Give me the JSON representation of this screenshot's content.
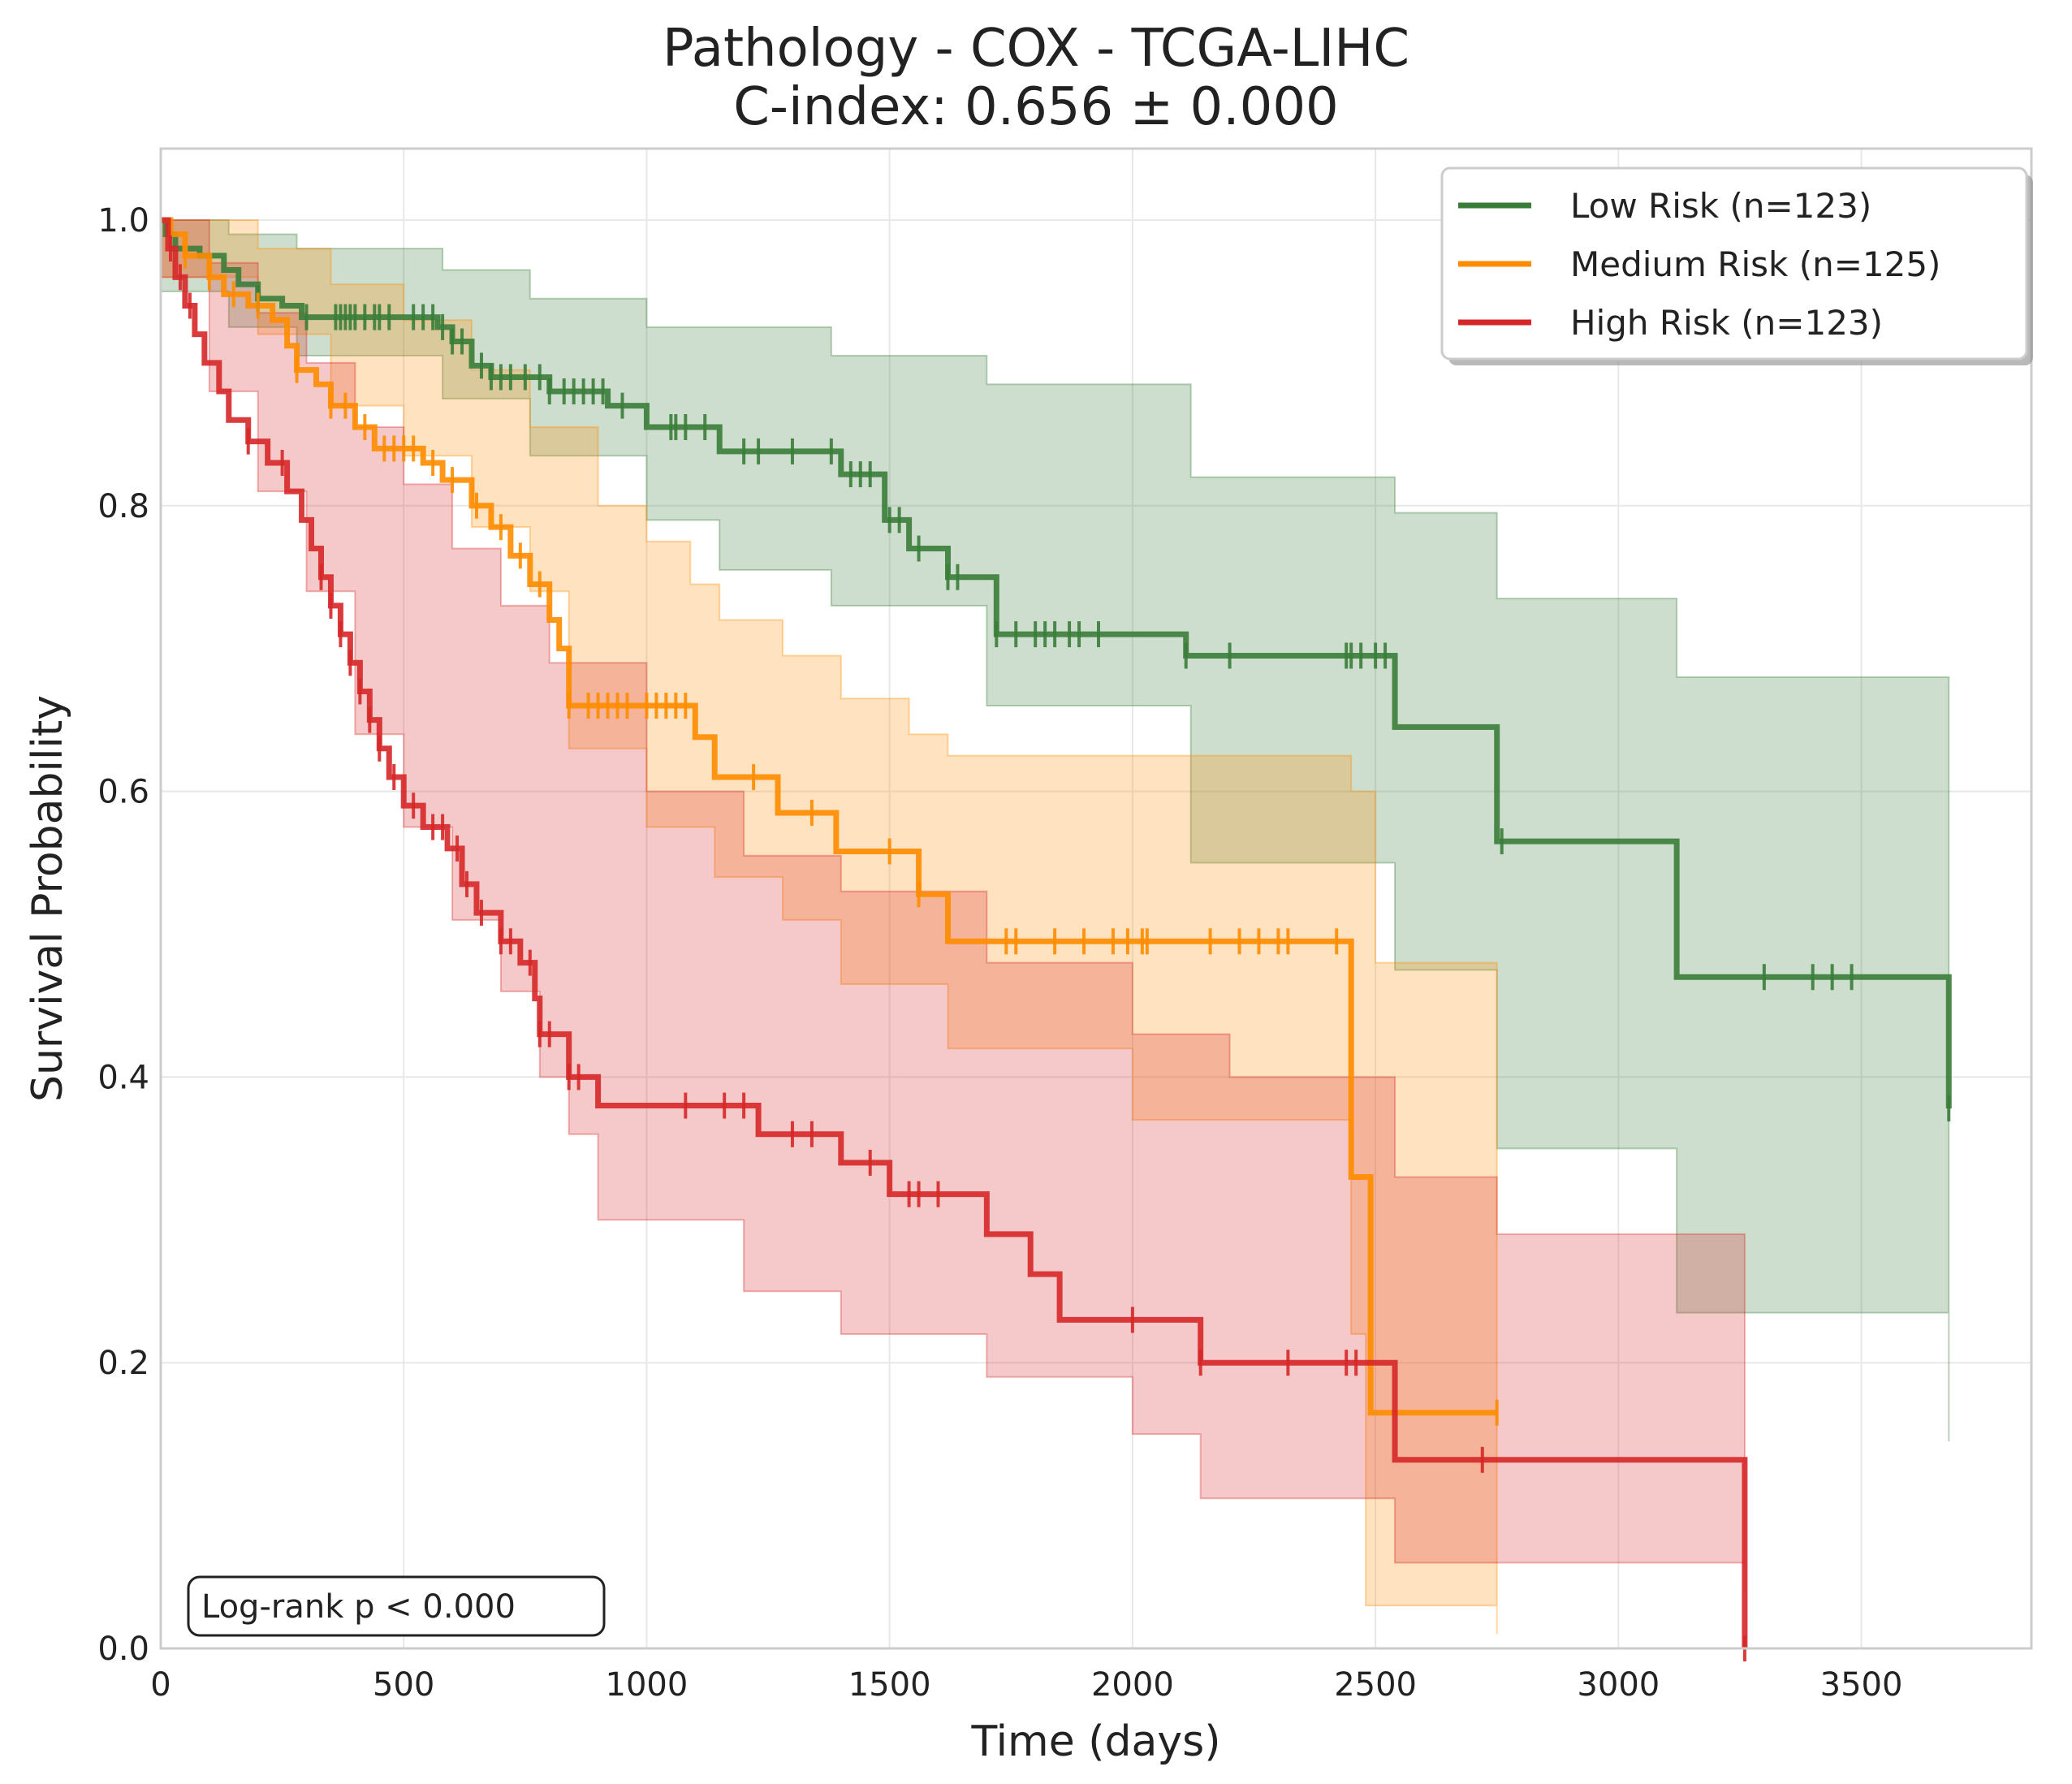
{
  "title": "Pathology - COX - TCGA-LIHC",
  "subtitle": "C-index: 0.656 ± 0.000",
  "annotation": "Log-rank p < 0.000",
  "chart_data": {
    "type": "line",
    "subtype": "kaplan-meier",
    "xlabel": "Time (days)",
    "ylabel": "Survival Probability",
    "xlim": [
      0,
      3850
    ],
    "ylim": [
      0,
      1.05
    ],
    "xticks": [
      "0",
      "500",
      "1000",
      "1500",
      "2000",
      "2500",
      "3000",
      "3500"
    ],
    "yticks": [
      "0.0",
      "0.2",
      "0.4",
      "0.6",
      "0.8",
      "1.0"
    ],
    "grid": true,
    "legend_position": "top-right",
    "series": [
      {
        "name": "Low Risk (n=123)",
        "color": "#3a7d3a",
        "steps": [
          [
            0,
            1.0
          ],
          [
            10,
            0.99
          ],
          [
            30,
            0.98
          ],
          [
            80,
            0.975
          ],
          [
            130,
            0.965
          ],
          [
            160,
            0.955
          ],
          [
            200,
            0.945
          ],
          [
            250,
            0.94
          ],
          [
            290,
            0.932
          ],
          [
            570,
            0.925
          ],
          [
            600,
            0.915
          ],
          [
            640,
            0.898
          ],
          [
            680,
            0.89
          ],
          [
            800,
            0.88
          ],
          [
            920,
            0.87
          ],
          [
            1000,
            0.855
          ],
          [
            1150,
            0.838
          ],
          [
            1400,
            0.822
          ],
          [
            1490,
            0.79
          ],
          [
            1540,
            0.77
          ],
          [
            1620,
            0.75
          ],
          [
            1720,
            0.71
          ],
          [
            2110,
            0.695
          ],
          [
            2540,
            0.645
          ],
          [
            2750,
            0.565
          ],
          [
            3120,
            0.47
          ],
          [
            3680,
            0.378
          ]
        ],
        "censors": [
          200,
          300,
          360,
          370,
          380,
          390,
          400,
          420,
          440,
          450,
          470,
          520,
          540,
          560,
          580,
          600,
          620,
          660,
          680,
          700,
          720,
          750,
          780,
          800,
          830,
          850,
          870,
          890,
          910,
          950,
          1050,
          1060,
          1080,
          1120,
          1200,
          1230,
          1300,
          1380,
          1420,
          1440,
          1460,
          1500,
          1520,
          1560,
          1620,
          1640,
          1720,
          1760,
          1800,
          1820,
          1840,
          1870,
          1890,
          1930,
          2110,
          2200,
          2440,
          2450,
          2470,
          2500,
          2520,
          2760,
          3300,
          3400,
          3440,
          3480,
          3680
        ],
        "ci_upper": [
          [
            0,
            1.0
          ],
          [
            140,
            0.99
          ],
          [
            280,
            0.98
          ],
          [
            580,
            0.965
          ],
          [
            760,
            0.945
          ],
          [
            1000,
            0.925
          ],
          [
            1380,
            0.905
          ],
          [
            1700,
            0.885
          ],
          [
            2120,
            0.82
          ],
          [
            2540,
            0.795
          ],
          [
            2750,
            0.735
          ],
          [
            3120,
            0.68
          ],
          [
            3680,
            0.61
          ]
        ],
        "ci_lower": [
          [
            0,
            0.95
          ],
          [
            140,
            0.925
          ],
          [
            280,
            0.905
          ],
          [
            580,
            0.875
          ],
          [
            760,
            0.835
          ],
          [
            1000,
            0.79
          ],
          [
            1150,
            0.755
          ],
          [
            1380,
            0.73
          ],
          [
            1700,
            0.66
          ],
          [
            2120,
            0.55
          ],
          [
            2540,
            0.475
          ],
          [
            2750,
            0.35
          ],
          [
            3120,
            0.235
          ],
          [
            3680,
            0.145
          ]
        ]
      },
      {
        "name": "Medium Risk (n=125)",
        "color": "#ff8c00",
        "steps": [
          [
            0,
            1.0
          ],
          [
            20,
            0.99
          ],
          [
            50,
            0.975
          ],
          [
            100,
            0.96
          ],
          [
            130,
            0.948
          ],
          [
            180,
            0.94
          ],
          [
            230,
            0.93
          ],
          [
            260,
            0.912
          ],
          [
            280,
            0.895
          ],
          [
            320,
            0.885
          ],
          [
            350,
            0.87
          ],
          [
            400,
            0.855
          ],
          [
            440,
            0.84
          ],
          [
            540,
            0.83
          ],
          [
            580,
            0.818
          ],
          [
            640,
            0.8
          ],
          [
            680,
            0.785
          ],
          [
            720,
            0.765
          ],
          [
            760,
            0.745
          ],
          [
            800,
            0.72
          ],
          [
            820,
            0.7
          ],
          [
            840,
            0.66
          ],
          [
            1100,
            0.638
          ],
          [
            1140,
            0.61
          ],
          [
            1270,
            0.585
          ],
          [
            1390,
            0.558
          ],
          [
            1560,
            0.528
          ],
          [
            1620,
            0.495
          ],
          [
            2450,
            0.33
          ],
          [
            2490,
            0.165
          ],
          [
            2750,
            0.165
          ]
        ],
        "censors": [
          50,
          100,
          150,
          200,
          280,
          350,
          380,
          420,
          460,
          480,
          500,
          520,
          560,
          600,
          650,
          700,
          740,
          780,
          840,
          880,
          900,
          920,
          940,
          960,
          1000,
          1020,
          1040,
          1060,
          1080,
          1220,
          1340,
          1500,
          1560,
          1740,
          1760,
          1840,
          1900,
          1960,
          1990,
          2020,
          2030,
          2160,
          2220,
          2260,
          2300,
          2320,
          2420,
          2750
        ],
        "ci_upper": [
          [
            0,
            1.0
          ],
          [
            200,
            0.98
          ],
          [
            350,
            0.955
          ],
          [
            500,
            0.93
          ],
          [
            640,
            0.895
          ],
          [
            760,
            0.855
          ],
          [
            900,
            0.8
          ],
          [
            1000,
            0.775
          ],
          [
            1090,
            0.745
          ],
          [
            1150,
            0.72
          ],
          [
            1280,
            0.695
          ],
          [
            1400,
            0.665
          ],
          [
            1540,
            0.64
          ],
          [
            1620,
            0.625
          ],
          [
            2450,
            0.6
          ],
          [
            2500,
            0.48
          ],
          [
            2750,
            0.48
          ]
        ],
        "ci_lower": [
          [
            0,
            0.96
          ],
          [
            200,
            0.92
          ],
          [
            350,
            0.87
          ],
          [
            500,
            0.835
          ],
          [
            640,
            0.785
          ],
          [
            760,
            0.74
          ],
          [
            840,
            0.63
          ],
          [
            1000,
            0.575
          ],
          [
            1140,
            0.54
          ],
          [
            1280,
            0.51
          ],
          [
            1400,
            0.465
          ],
          [
            1620,
            0.42
          ],
          [
            2000,
            0.37
          ],
          [
            2450,
            0.22
          ],
          [
            2480,
            0.03
          ],
          [
            2750,
            0.01
          ]
        ]
      },
      {
        "name": "High Risk (n=123)",
        "color": "#d62728",
        "steps": [
          [
            0,
            1.0
          ],
          [
            15,
            0.98
          ],
          [
            30,
            0.96
          ],
          [
            50,
            0.94
          ],
          [
            70,
            0.92
          ],
          [
            90,
            0.9
          ],
          [
            120,
            0.88
          ],
          [
            140,
            0.86
          ],
          [
            180,
            0.845
          ],
          [
            220,
            0.83
          ],
          [
            260,
            0.81
          ],
          [
            290,
            0.79
          ],
          [
            310,
            0.77
          ],
          [
            330,
            0.75
          ],
          [
            350,
            0.73
          ],
          [
            370,
            0.71
          ],
          [
            390,
            0.69
          ],
          [
            410,
            0.67
          ],
          [
            430,
            0.65
          ],
          [
            450,
            0.63
          ],
          [
            470,
            0.61
          ],
          [
            500,
            0.59
          ],
          [
            540,
            0.575
          ],
          [
            590,
            0.56
          ],
          [
            620,
            0.535
          ],
          [
            650,
            0.515
          ],
          [
            700,
            0.495
          ],
          [
            740,
            0.48
          ],
          [
            770,
            0.455
          ],
          [
            780,
            0.43
          ],
          [
            840,
            0.4
          ],
          [
            900,
            0.38
          ],
          [
            1230,
            0.36
          ],
          [
            1400,
            0.34
          ],
          [
            1500,
            0.318
          ],
          [
            1700,
            0.29
          ],
          [
            1790,
            0.262
          ],
          [
            1850,
            0.23
          ],
          [
            2140,
            0.2
          ],
          [
            2540,
            0.132
          ],
          [
            3260,
            0.132
          ],
          [
            3260,
            0.0
          ]
        ],
        "censors": [
          20,
          40,
          60,
          180,
          250,
          330,
          350,
          370,
          390,
          410,
          430,
          450,
          480,
          520,
          560,
          580,
          610,
          630,
          660,
          700,
          720,
          760,
          780,
          800,
          840,
          860,
          1080,
          1160,
          1200,
          1300,
          1340,
          1460,
          1540,
          1560,
          1600,
          2000,
          2140,
          2320,
          2440,
          2460,
          2720,
          3260
        ],
        "ci_upper": [
          [
            0,
            1.0
          ],
          [
            100,
            0.97
          ],
          [
            200,
            0.935
          ],
          [
            300,
            0.9
          ],
          [
            400,
            0.855
          ],
          [
            500,
            0.815
          ],
          [
            600,
            0.77
          ],
          [
            700,
            0.73
          ],
          [
            800,
            0.69
          ],
          [
            1000,
            0.6
          ],
          [
            1200,
            0.555
          ],
          [
            1400,
            0.53
          ],
          [
            1700,
            0.48
          ],
          [
            2000,
            0.43
          ],
          [
            2200,
            0.4
          ],
          [
            2540,
            0.33
          ],
          [
            2750,
            0.29
          ],
          [
            3260,
            0.29
          ]
        ],
        "ci_lower": [
          [
            0,
            0.96
          ],
          [
            100,
            0.88
          ],
          [
            200,
            0.81
          ],
          [
            300,
            0.74
          ],
          [
            400,
            0.64
          ],
          [
            500,
            0.575
          ],
          [
            600,
            0.51
          ],
          [
            700,
            0.46
          ],
          [
            780,
            0.4
          ],
          [
            840,
            0.36
          ],
          [
            900,
            0.3
          ],
          [
            1200,
            0.25
          ],
          [
            1400,
            0.22
          ],
          [
            1700,
            0.19
          ],
          [
            2000,
            0.15
          ],
          [
            2140,
            0.105
          ],
          [
            2540,
            0.06
          ],
          [
            3260,
            0.04
          ]
        ]
      }
    ]
  }
}
